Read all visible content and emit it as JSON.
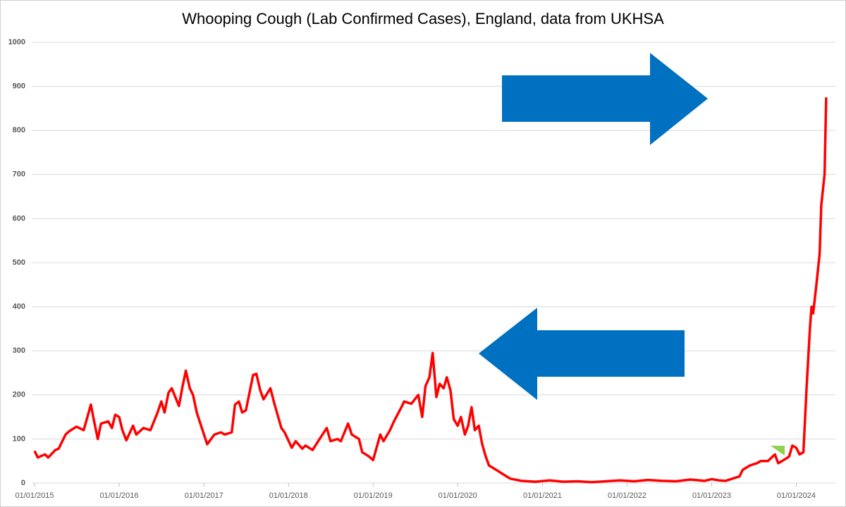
{
  "chart_data": {
    "type": "line",
    "title": "Whooping Cough (Lab Confirmed Cases), England, data from UKHSA",
    "x": [
      "01/01/2015",
      "15/01/2015",
      "15/02/2015",
      "01/03/2015",
      "01/04/2015",
      "15/04/2015",
      "15/05/2015",
      "01/06/2015",
      "01/07/2015",
      "01/08/2015",
      "01/09/2015",
      "15/09/2015",
      "01/10/2015",
      "15/10/2015",
      "15/11/2015",
      "01/12/2015",
      "15/12/2015",
      "01/01/2016",
      "15/01/2016",
      "01/02/2016",
      "01/03/2016",
      "15/03/2016",
      "15/04/2016",
      "15/05/2016",
      "15/06/2016",
      "01/07/2016",
      "15/07/2016",
      "01/08/2016",
      "15/08/2016",
      "15/09/2016",
      "01/10/2016",
      "15/10/2016",
      "01/11/2016",
      "15/11/2016",
      "01/12/2016",
      "01/01/2017",
      "15/01/2017",
      "15/02/2017",
      "15/03/2017",
      "01/04/2017",
      "01/05/2017",
      "15/05/2017",
      "01/06/2017",
      "15/06/2017",
      "01/07/2017",
      "01/08/2017",
      "15/08/2017",
      "01/09/2017",
      "15/09/2017",
      "15/10/2017",
      "01/11/2017",
      "01/12/2017",
      "15/12/2017",
      "15/01/2018",
      "01/02/2018",
      "01/03/2018",
      "15/03/2018",
      "15/04/2018",
      "15/05/2018",
      "15/06/2018",
      "01/07/2018",
      "01/08/2018",
      "15/08/2018",
      "15/09/2018",
      "01/10/2018",
      "01/11/2018",
      "15/11/2018",
      "15/12/2018",
      "01/01/2019",
      "01/02/2019",
      "15/02/2019",
      "15/03/2019",
      "01/04/2019",
      "01/05/2019",
      "15/05/2019",
      "15/06/2019",
      "15/07/2019",
      "01/08/2019",
      "15/08/2019",
      "01/09/2019",
      "15/09/2019",
      "01/10/2019",
      "15/10/2019",
      "01/11/2019",
      "15/11/2019",
      "01/12/2019",
      "15/12/2019",
      "01/01/2020",
      "15/01/2020",
      "01/02/2020",
      "15/02/2020",
      "01/03/2020",
      "15/03/2020",
      "01/04/2020",
      "15/04/2020",
      "01/05/2020",
      "15/05/2020",
      "15/06/2020",
      "15/07/2020",
      "15/08/2020",
      "01/10/2020",
      "01/12/2020",
      "01/02/2021",
      "01/04/2021",
      "01/06/2021",
      "01/08/2021",
      "01/10/2021",
      "01/12/2021",
      "01/02/2022",
      "01/04/2022",
      "01/06/2022",
      "01/08/2022",
      "01/10/2022",
      "01/12/2022",
      "01/01/2023",
      "01/02/2023",
      "01/03/2023",
      "01/04/2023",
      "01/05/2023",
      "15/05/2023",
      "15/06/2023",
      "15/07/2023",
      "01/08/2023",
      "01/09/2023",
      "01/10/2023",
      "15/10/2023",
      "01/11/2023",
      "01/12/2023",
      "15/12/2023",
      "01/01/2024",
      "15/01/2024",
      "01/02/2024",
      "15/02/2024",
      "29/02/2024",
      "07/03/2024",
      "14/03/2024",
      "28/03/2024",
      "11/04/2024",
      "18/04/2024",
      "02/05/2024",
      "09/05/2024"
    ],
    "series": [
      {
        "color": "#ff0000",
        "values": [
          73,
          58,
          65,
          58,
          75,
          78,
          110,
          118,
          128,
          120,
          178,
          140,
          100,
          135,
          140,
          125,
          155,
          150,
          120,
          97,
          130,
          110,
          125,
          120,
          160,
          185,
          160,
          205,
          215,
          175,
          220,
          255,
          215,
          200,
          160,
          110,
          88,
          110,
          115,
          110,
          115,
          178,
          185,
          160,
          165,
          245,
          248,
          210,
          190,
          215,
          180,
          125,
          115,
          80,
          95,
          78,
          85,
          75,
          100,
          125,
          95,
          100,
          95,
          135,
          110,
          100,
          70,
          60,
          52,
          110,
          95,
          120,
          140,
          170,
          185,
          180,
          200,
          150,
          220,
          240,
          295,
          195,
          225,
          215,
          240,
          210,
          145,
          130,
          150,
          110,
          130,
          172,
          120,
          130,
          90,
          60,
          40,
          30,
          20,
          10,
          5,
          3,
          6,
          3,
          4,
          2,
          4,
          6,
          4,
          7,
          5,
          4,
          8,
          5,
          9,
          6,
          5,
          10,
          15,
          30,
          40,
          45,
          50,
          50,
          65,
          45,
          50,
          60,
          85,
          80,
          65,
          70,
          220,
          350,
          400,
          385,
          450,
          520,
          630,
          700,
          875
        ]
      }
    ],
    "xlim": [
      "01/01/2015",
      "18/06/2024"
    ],
    "xticks": [
      "01/01/2015",
      "01/01/2016",
      "01/01/2017",
      "01/01/2018",
      "01/01/2019",
      "01/01/2020",
      "01/01/2021",
      "01/01/2022",
      "01/01/2023",
      "01/01/2024"
    ],
    "ylim": [
      0,
      1000
    ],
    "yticks": [
      0,
      100,
      200,
      300,
      400,
      500,
      600,
      700,
      800,
      900,
      1000
    ],
    "grid": true
  }
}
